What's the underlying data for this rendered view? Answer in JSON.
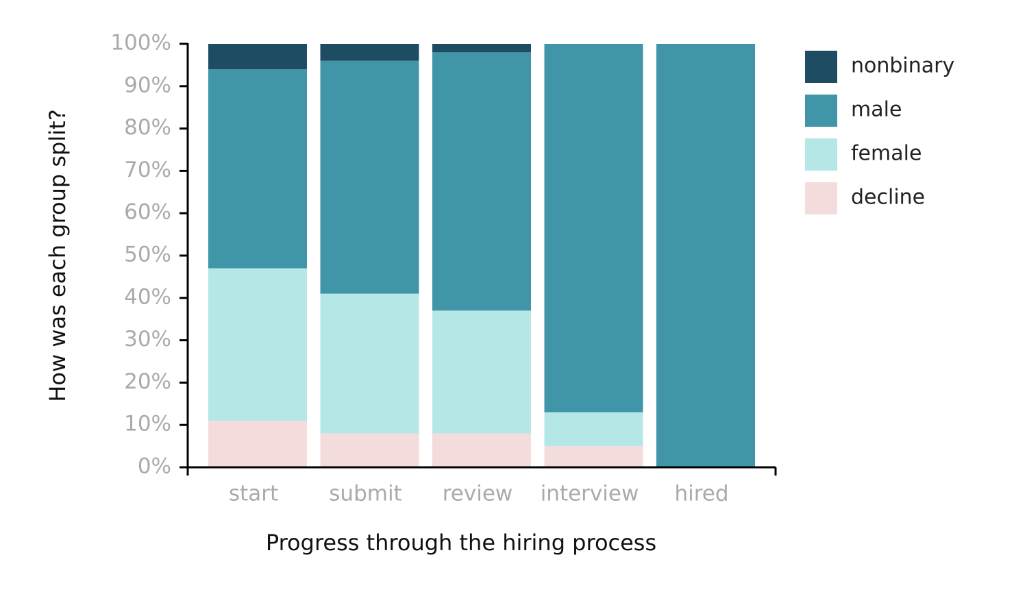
{
  "chart_data": {
    "type": "stacked_bar",
    "title": null,
    "x_label": "Progress through the hiring process",
    "y_label": "How was each group split?",
    "categories": [
      "start",
      "submit",
      "review",
      "interview",
      "hired"
    ],
    "series": [
      {
        "name": "nonbinary",
        "color": "#1e4d63",
        "values": [
          6,
          4,
          2,
          0,
          0
        ]
      },
      {
        "name": "male",
        "color": "#4096a8",
        "values": [
          47,
          55,
          61,
          87,
          100
        ]
      },
      {
        "name": "female",
        "color": "#b5e7e6",
        "values": [
          36,
          33,
          29,
          8,
          0
        ]
      },
      {
        "name": "decline",
        "color": "#f3dcdb",
        "values": [
          11,
          8,
          8,
          5,
          0
        ]
      }
    ],
    "ylim": [
      0,
      100
    ],
    "yticks": [
      {
        "value": 0,
        "label": "0%"
      },
      {
        "value": 10,
        "label": "10%"
      },
      {
        "value": 20,
        "label": "20%"
      },
      {
        "value": 30,
        "label": "30%"
      },
      {
        "value": 40,
        "label": "40%"
      },
      {
        "value": 50,
        "label": "50%"
      },
      {
        "value": 60,
        "label": "60%"
      },
      {
        "value": 70,
        "label": "70%"
      },
      {
        "value": 80,
        "label": "80%"
      },
      {
        "value": 90,
        "label": "90%"
      },
      {
        "value": 100,
        "label": "100%"
      }
    ],
    "grid": false,
    "legend": "right"
  }
}
